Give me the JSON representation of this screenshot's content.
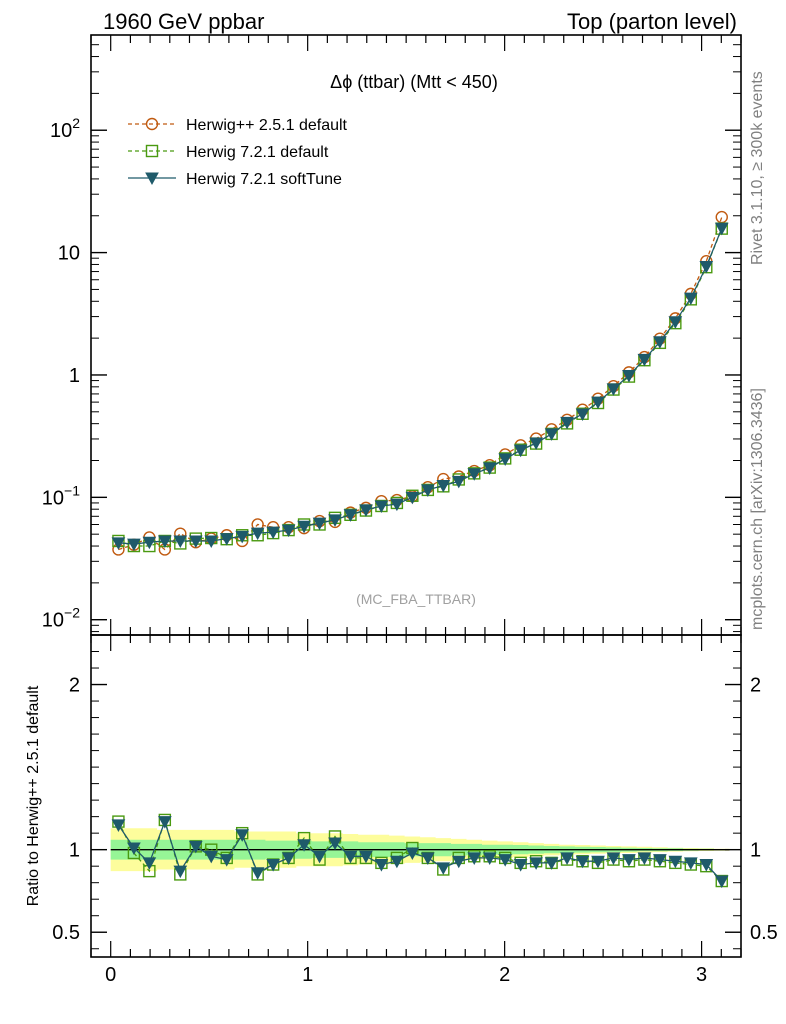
{
  "header": {
    "left": "1960 GeV ppbar",
    "right": "Top (parton level)",
    "side_top": "Rivet 3.1.10, ≥ 300k events",
    "side_bottom": "mcplots.cern.ch [arXiv:1306.3436]"
  },
  "chart_data": {
    "type": "line",
    "title": "Δϕ (ttbar) (Mtt < 450)",
    "watermark": "(MC_FBA_TTBAR)",
    "x": [
      0.0393,
      0.1178,
      0.1963,
      0.2749,
      0.3534,
      0.432,
      0.5105,
      0.589,
      0.6676,
      0.7461,
      0.8247,
      0.9032,
      0.9817,
      1.0603,
      1.1388,
      1.2174,
      1.2959,
      1.3744,
      1.453,
      1.5315,
      1.6101,
      1.6886,
      1.7671,
      1.8457,
      1.9242,
      2.0028,
      2.0813,
      2.1598,
      2.2384,
      2.3169,
      2.3955,
      2.474,
      2.5525,
      2.6311,
      2.7096,
      2.7882,
      2.8667,
      2.9452,
      3.0238,
      3.1023
    ],
    "xlim": [
      -0.1,
      3.2
    ],
    "xticks": [
      "0",
      "1",
      "2",
      "3"
    ],
    "top_panel": {
      "scale": "log",
      "ylim": [
        0.0075,
        600
      ],
      "yticks": [
        {
          "value": 0.01,
          "base": "10",
          "exp": "−2"
        },
        {
          "value": 0.1,
          "base": "10",
          "exp": "−1"
        },
        {
          "value": 1,
          "base": "1",
          "exp": ""
        },
        {
          "value": 10,
          "base": "10",
          "exp": ""
        },
        {
          "value": 100,
          "base": "10",
          "exp": "2"
        }
      ],
      "legend_position": "top-left",
      "series": [
        {
          "name": "Herwig++ 2.5.1 default",
          "color": "#c05a10",
          "marker": "circle",
          "dash": "dashed",
          "values": [
            0.0375,
            0.041,
            0.047,
            0.0375,
            0.0505,
            0.043,
            0.046,
            0.049,
            0.044,
            0.06,
            0.057,
            0.057,
            0.056,
            0.064,
            0.063,
            0.075,
            0.082,
            0.093,
            0.095,
            0.102,
            0.121,
            0.141,
            0.148,
            0.164,
            0.183,
            0.224,
            0.266,
            0.302,
            0.36,
            0.43,
            0.52,
            0.64,
            0.81,
            1.05,
            1.4,
            1.98,
            2.9,
            4.6,
            8.5,
            19.5
          ]
        },
        {
          "name": "Herwig 7.2.1 default",
          "color": "#4a9a10",
          "marker": "square",
          "dash": "dashed",
          "values": [
            0.044,
            0.04,
            0.04,
            0.044,
            0.042,
            0.046,
            0.0465,
            0.0455,
            0.049,
            0.049,
            0.051,
            0.054,
            0.06,
            0.06,
            0.068,
            0.072,
            0.078,
            0.085,
            0.09,
            0.103,
            0.115,
            0.123,
            0.14,
            0.157,
            0.175,
            0.208,
            0.245,
            0.275,
            0.33,
            0.402,
            0.482,
            0.59,
            0.76,
            0.97,
            1.32,
            1.83,
            2.65,
            4.15,
            7.6,
            15.7
          ]
        },
        {
          "name": "Herwig 7.2.1 softTune",
          "color": "#1f5a6a",
          "marker": "triangle",
          "dash": "solid",
          "values": [
            0.0425,
            0.0415,
            0.043,
            0.044,
            0.044,
            0.044,
            0.044,
            0.046,
            0.048,
            0.051,
            0.052,
            0.054,
            0.058,
            0.0615,
            0.0655,
            0.072,
            0.079,
            0.085,
            0.088,
            0.1,
            0.115,
            0.125,
            0.135,
            0.156,
            0.174,
            0.206,
            0.243,
            0.278,
            0.33,
            0.41,
            0.48,
            0.6,
            0.77,
            0.99,
            1.34,
            1.87,
            2.72,
            4.25,
            7.7,
            15.8
          ]
        }
      ]
    },
    "ratio_panel": {
      "ylabel": "Ratio to Herwig++ 2.5.1 default",
      "ylim": [
        0.35,
        2.3
      ],
      "yticks": [
        "0.5",
        "1",
        "2"
      ],
      "ytick_values": [
        0.5,
        1,
        2
      ],
      "band_inner_halfwidth": [
        0.06,
        0.06,
        0.06,
        0.06,
        0.06,
        0.06,
        0.06,
        0.06,
        0.06,
        0.06,
        0.055,
        0.055,
        0.055,
        0.05,
        0.05,
        0.05,
        0.045,
        0.045,
        0.045,
        0.04,
        0.04,
        0.04,
        0.035,
        0.035,
        0.03,
        0.03,
        0.028,
        0.025,
        0.022,
        0.02,
        0.018,
        0.016,
        0.014,
        0.012,
        0.01,
        0.009,
        0.008,
        0.006,
        0.005,
        0.004
      ],
      "band_outer_halfwidth": [
        0.13,
        0.13,
        0.13,
        0.12,
        0.12,
        0.12,
        0.12,
        0.12,
        0.11,
        0.11,
        0.11,
        0.11,
        0.1,
        0.1,
        0.1,
        0.095,
        0.09,
        0.09,
        0.085,
        0.08,
        0.075,
        0.07,
        0.065,
        0.06,
        0.055,
        0.05,
        0.045,
        0.04,
        0.035,
        0.03,
        0.028,
        0.025,
        0.022,
        0.02,
        0.018,
        0.015,
        0.012,
        0.01,
        0.008,
        0.006
      ],
      "series": [
        {
          "name": "Herwig 7.2.1 default",
          "color": "#4a9a10",
          "marker": "square",
          "values": [
            1.17,
            0.98,
            0.87,
            1.18,
            0.85,
            1.02,
            1.0,
            0.95,
            1.1,
            0.85,
            0.91,
            0.95,
            1.07,
            0.94,
            1.08,
            0.95,
            0.95,
            0.92,
            0.95,
            1.01,
            0.95,
            0.88,
            0.95,
            0.96,
            0.96,
            0.95,
            0.92,
            0.93,
            0.92,
            0.94,
            0.93,
            0.92,
            0.94,
            0.93,
            0.94,
            0.93,
            0.92,
            0.91,
            0.9,
            0.81
          ]
        },
        {
          "name": "Herwig 7.2.1 softTune",
          "color": "#1f5a6a",
          "marker": "triangle",
          "values": [
            1.15,
            1.01,
            0.92,
            1.17,
            0.87,
            1.02,
            0.96,
            0.94,
            1.09,
            0.86,
            0.91,
            0.95,
            1.03,
            0.96,
            1.04,
            0.96,
            0.96,
            0.91,
            0.93,
            0.98,
            0.95,
            0.89,
            0.93,
            0.95,
            0.95,
            0.94,
            0.91,
            0.92,
            0.92,
            0.95,
            0.93,
            0.93,
            0.95,
            0.94,
            0.95,
            0.94,
            0.93,
            0.92,
            0.91,
            0.81
          ]
        }
      ]
    }
  }
}
